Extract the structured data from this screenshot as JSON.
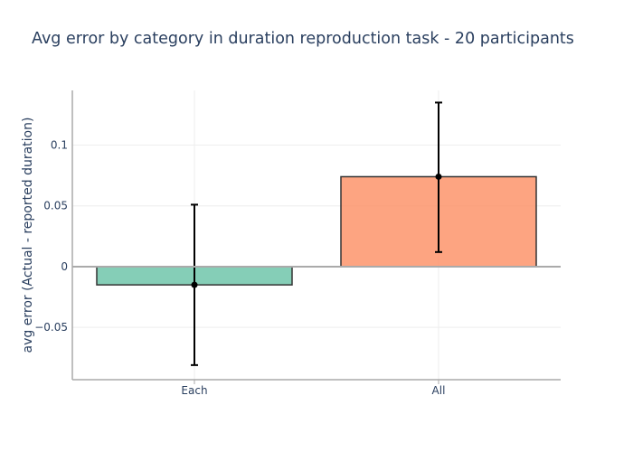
{
  "chart_data": {
    "type": "bar",
    "title": "Avg error by category in duration reproduction task - 20 participants",
    "xlabel": "",
    "ylabel": "avg error (Actual - reported duration)",
    "categories": [
      "Each",
      "All"
    ],
    "values": [
      -0.015,
      0.074
    ],
    "error_plus": [
      0.066,
      0.061
    ],
    "error_minus": [
      0.066,
      0.062
    ],
    "bar_colors": [
      "#66c2a5",
      "#fc8d62"
    ],
    "ylim": [
      -0.093,
      0.145
    ],
    "yticks": [
      -0.05,
      0,
      0.05,
      0.1
    ],
    "ytick_labels": [
      "−0.05",
      "0",
      "0.05",
      "0.1"
    ],
    "grid": true,
    "legend": false
  }
}
